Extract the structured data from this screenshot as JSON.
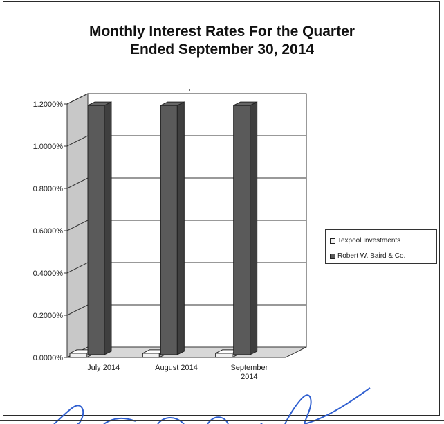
{
  "chart_data": {
    "type": "bar",
    "title": [
      "Monthly Interest Rates For the Quarter",
      "Ended September 30, 2014"
    ],
    "categories": [
      "July 2014",
      "August 2014",
      "September 2014"
    ],
    "category_lines": [
      [
        "July 2014"
      ],
      [
        "August 2014"
      ],
      [
        "September",
        "2014"
      ]
    ],
    "series": [
      {
        "name": "Texpool Investments",
        "values": [
          0.02,
          0.02,
          0.02
        ],
        "color": "#f2f2f2"
      },
      {
        "name": "Robert W. Baird & Co.",
        "values": [
          1.18,
          1.18,
          1.18
        ],
        "color": "#5a5a5a"
      }
    ],
    "y_ticks": [
      "0.0000%",
      "0.2000%",
      "0.4000%",
      "0.6000%",
      "0.8000%",
      "1.0000%",
      "1.2000%"
    ],
    "ylim": [
      0,
      1.2
    ],
    "grid": true,
    "style": "3d-column",
    "legend_position": "right",
    "wall_color": "#c8c8c8"
  }
}
